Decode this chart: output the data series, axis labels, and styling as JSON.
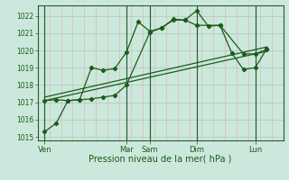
{
  "bg_color": "#cce8dc",
  "grid_color_h": "#b0ccbe",
  "grid_color_v": "#ddb8b8",
  "line_color": "#1a5c1a",
  "ylim": [
    1014.8,
    1022.6
  ],
  "yticks": [
    1015,
    1016,
    1017,
    1018,
    1019,
    1020,
    1021,
    1022
  ],
  "xlabel": "Pression niveau de la mer( hPa )",
  "xlabel_color": "#1a5c1a",
  "xtick_labels": [
    "Ven",
    "Mar",
    "Sam",
    "Dim",
    "Lun"
  ],
  "xtick_positions": [
    0.0,
    3.5,
    4.5,
    6.5,
    9.0
  ],
  "vline_positions": [
    0.0,
    3.5,
    4.5,
    6.5,
    9.0
  ],
  "xlim": [
    -0.3,
    10.2
  ],
  "series": [
    {
      "x": [
        0.0,
        0.5,
        1.0,
        1.5,
        2.0,
        2.5,
        3.0,
        3.5,
        4.0,
        4.5,
        5.0,
        5.5,
        6.0,
        6.5,
        7.0,
        7.5,
        8.0,
        8.5,
        9.0,
        9.5
      ],
      "y": [
        1015.3,
        1015.8,
        1017.1,
        1017.15,
        1019.0,
        1018.85,
        1018.95,
        1019.9,
        1021.65,
        1021.1,
        1021.3,
        1021.75,
        1021.75,
        1022.3,
        1021.4,
        1021.45,
        1019.85,
        1018.9,
        1019.0,
        1020.1
      ],
      "marker": true,
      "lw": 0.9
    },
    {
      "x": [
        0.0,
        9.5
      ],
      "y": [
        1017.3,
        1020.2
      ],
      "marker": false,
      "lw": 0.9
    },
    {
      "x": [
        0.0,
        9.5
      ],
      "y": [
        1017.1,
        1019.95
      ],
      "marker": false,
      "lw": 0.9
    },
    {
      "x": [
        0.0,
        0.5,
        1.0,
        1.5,
        2.0,
        2.5,
        3.0,
        3.5,
        4.5,
        5.0,
        5.5,
        6.0,
        6.5,
        7.5,
        8.5,
        9.0,
        9.5
      ],
      "y": [
        1017.1,
        1017.15,
        1017.1,
        1017.15,
        1017.2,
        1017.3,
        1017.4,
        1018.0,
        1021.05,
        1021.3,
        1021.8,
        1021.75,
        1021.45,
        1021.45,
        1019.8,
        1019.8,
        1020.05
      ],
      "marker": true,
      "lw": 0.9
    }
  ]
}
